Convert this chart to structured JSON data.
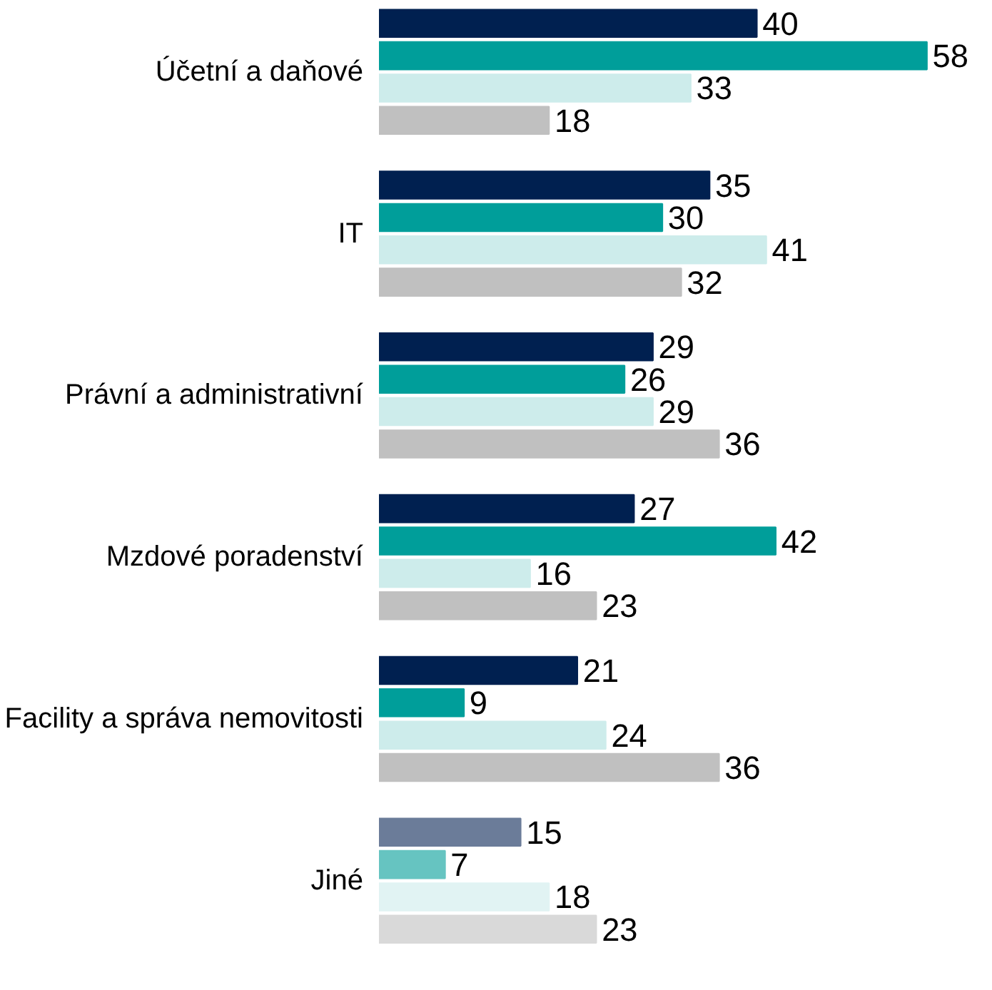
{
  "chart_data": {
    "type": "bar",
    "orientation": "horizontal",
    "data_labels": true,
    "grid": false,
    "categories": [
      "Účetní a daňové",
      "IT",
      "Právní a administrativní",
      "Mzdové poradenství",
      "Facility a správa nemovitosti",
      "Jiné"
    ],
    "series": [
      {
        "colors": [
          "#002050",
          "#002050",
          "#002050",
          "#002050",
          "#002050",
          "#6b7c99"
        ],
        "values": [
          40,
          35,
          29,
          27,
          21,
          15
        ]
      },
      {
        "colors": [
          "#009e9a",
          "#009e9a",
          "#009e9a",
          "#009e9a",
          "#009e9a",
          "#66c4c1"
        ],
        "values": [
          58,
          30,
          26,
          42,
          9,
          7
        ]
      },
      {
        "colors": [
          "#cdeceb",
          "#cdeceb",
          "#cdeceb",
          "#cdeceb",
          "#cdeceb",
          "#e1f3f3"
        ],
        "values": [
          33,
          41,
          29,
          16,
          24,
          18
        ]
      },
      {
        "colors": [
          "#c0c0c0",
          "#c0c0c0",
          "#c0c0c0",
          "#c0c0c0",
          "#c0c0c0",
          "#d9d9d9"
        ],
        "values": [
          18,
          32,
          36,
          23,
          36,
          23
        ]
      }
    ]
  }
}
